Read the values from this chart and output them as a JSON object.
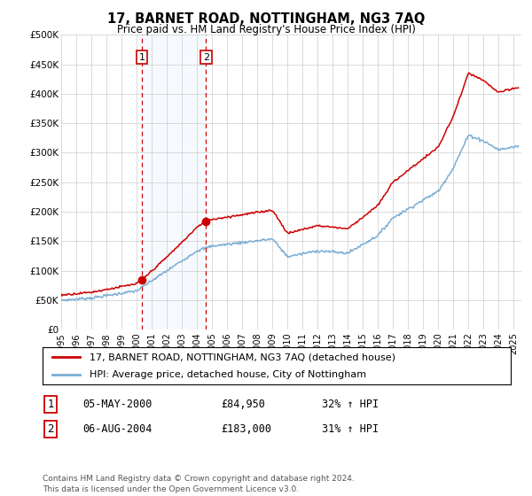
{
  "title": "17, BARNET ROAD, NOTTINGHAM, NG3 7AQ",
  "subtitle": "Price paid vs. HM Land Registry's House Price Index (HPI)",
  "footer": "Contains HM Land Registry data © Crown copyright and database right 2024.\nThis data is licensed under the Open Government Licence v3.0.",
  "legend_line1": "17, BARNET ROAD, NOTTINGHAM, NG3 7AQ (detached house)",
  "legend_line2": "HPI: Average price, detached house, City of Nottingham",
  "sale1_label": "1",
  "sale1_date": "05-MAY-2000",
  "sale1_price": "£84,950",
  "sale1_hpi": "32% ↑ HPI",
  "sale1_x": 2000.35,
  "sale1_y": 84950,
  "sale2_label": "2",
  "sale2_date": "06-AUG-2004",
  "sale2_price": "£183,000",
  "sale2_hpi": "31% ↑ HPI",
  "sale2_x": 2004.6,
  "sale2_y": 183000,
  "red_color": "#cc0000",
  "blue_color": "#7aadd4",
  "shade_color": "#ddeeff",
  "grid_color": "#cccccc",
  "background_color": "#ffffff",
  "ylim": [
    0,
    500000
  ],
  "xlim": [
    1995,
    2025.5
  ],
  "yticks": [
    0,
    50000,
    100000,
    150000,
    200000,
    250000,
    300000,
    350000,
    400000,
    450000,
    500000
  ],
  "ytick_labels": [
    "£0",
    "£50K",
    "£100K",
    "£150K",
    "£200K",
    "£250K",
    "£300K",
    "£350K",
    "£400K",
    "£450K",
    "£500K"
  ],
  "xticks": [
    1995,
    1996,
    1997,
    1998,
    1999,
    2000,
    2001,
    2002,
    2003,
    2004,
    2005,
    2006,
    2007,
    2008,
    2009,
    2010,
    2011,
    2012,
    2013,
    2014,
    2015,
    2016,
    2017,
    2018,
    2019,
    2020,
    2021,
    2022,
    2023,
    2024,
    2025
  ]
}
